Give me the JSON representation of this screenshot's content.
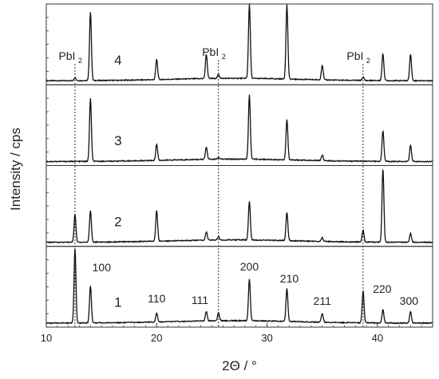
{
  "chart_data": {
    "type": "line",
    "xlabel": "2Θ / °",
    "ylabel": "Intensity / cps",
    "xlim": [
      10,
      45
    ],
    "x_ticks": [
      "10",
      "20",
      "30",
      "40"
    ],
    "reference_lines": [
      {
        "x": 12.6,
        "label": "PbI",
        "subscript": "2"
      },
      {
        "x": 25.6,
        "label": "PbI",
        "subscript": "2"
      },
      {
        "x": 38.7,
        "label": "PbI",
        "subscript": "2"
      }
    ],
    "peak_labels": [
      {
        "x": 14.0,
        "label": "100"
      },
      {
        "x": 20.0,
        "label": "110"
      },
      {
        "x": 24.5,
        "label": "111"
      },
      {
        "x": 28.4,
        "label": "200"
      },
      {
        "x": 31.8,
        "label": "210"
      },
      {
        "x": 35.0,
        "label": "211"
      },
      {
        "x": 40.5,
        "label": "220"
      },
      {
        "x": 43.0,
        "label": "300"
      }
    ],
    "series": [
      {
        "name": "4",
        "baseline": 0.05,
        "peaks": [
          [
            12.6,
            0.04
          ],
          [
            14.0,
            0.85
          ],
          [
            20.0,
            0.25
          ],
          [
            24.5,
            0.3
          ],
          [
            25.6,
            0.05
          ],
          [
            28.4,
            0.92
          ],
          [
            31.8,
            0.92
          ],
          [
            35.0,
            0.18
          ],
          [
            38.7,
            0.04
          ],
          [
            40.5,
            0.33
          ],
          [
            43.0,
            0.33
          ]
        ]
      },
      {
        "name": "3",
        "baseline": 0.05,
        "peaks": [
          [
            14.0,
            0.78
          ],
          [
            20.0,
            0.2
          ],
          [
            24.5,
            0.15
          ],
          [
            25.6,
            0.02
          ],
          [
            28.4,
            0.8
          ],
          [
            31.8,
            0.5
          ],
          [
            35.0,
            0.07
          ],
          [
            40.5,
            0.38
          ],
          [
            43.0,
            0.2
          ]
        ]
      },
      {
        "name": "2",
        "baseline": 0.05,
        "peaks": [
          [
            12.6,
            0.35
          ],
          [
            14.0,
            0.39
          ],
          [
            20.0,
            0.38
          ],
          [
            24.5,
            0.1
          ],
          [
            25.6,
            0.04
          ],
          [
            28.4,
            0.48
          ],
          [
            31.8,
            0.35
          ],
          [
            35.0,
            0.05
          ],
          [
            38.7,
            0.15
          ],
          [
            40.5,
            0.91
          ],
          [
            43.0,
            0.11
          ]
        ]
      },
      {
        "name": "1",
        "baseline": 0.05,
        "peaks": [
          [
            12.6,
            0.92
          ],
          [
            14.0,
            0.46
          ],
          [
            20.0,
            0.11
          ],
          [
            24.5,
            0.12
          ],
          [
            25.6,
            0.1
          ],
          [
            28.4,
            0.52
          ],
          [
            31.8,
            0.41
          ],
          [
            35.0,
            0.11
          ],
          [
            38.7,
            0.39
          ],
          [
            40.5,
            0.17
          ],
          [
            43.0,
            0.14
          ]
        ]
      }
    ]
  }
}
